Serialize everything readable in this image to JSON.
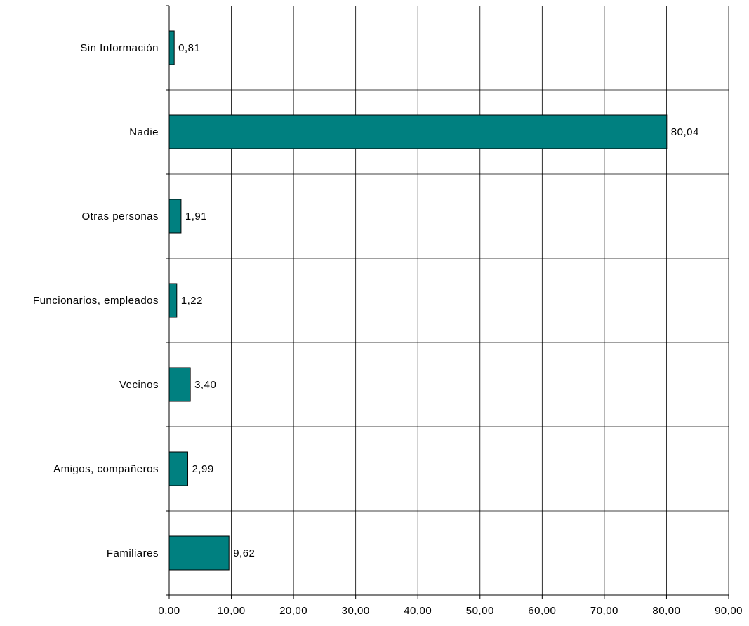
{
  "chart_data": {
    "type": "bar",
    "orientation": "horizontal",
    "categories": [
      "Sin Información",
      "Nadie",
      "Otras personas",
      "Funcionarios, empleados",
      "Vecinos",
      "Amigos, compañeros",
      "Familiares"
    ],
    "values": [
      0.81,
      80.04,
      1.91,
      1.22,
      3.4,
      2.99,
      9.62
    ],
    "value_labels": [
      "0,81",
      "80,04",
      "1,91",
      "1,22",
      "3,40",
      "2,99",
      "9,62"
    ],
    "xlim": [
      0,
      90
    ],
    "x_ticks": [
      0,
      10,
      20,
      30,
      40,
      50,
      60,
      70,
      80,
      90
    ],
    "x_tick_labels": [
      "0,00",
      "10,00",
      "20,00",
      "30,00",
      "40,00",
      "50,00",
      "60,00",
      "70,00",
      "80,00",
      "90,00"
    ],
    "title": "",
    "xlabel": "",
    "ylabel": "",
    "grid": true,
    "legend": "none",
    "bar_color": "#008080"
  }
}
